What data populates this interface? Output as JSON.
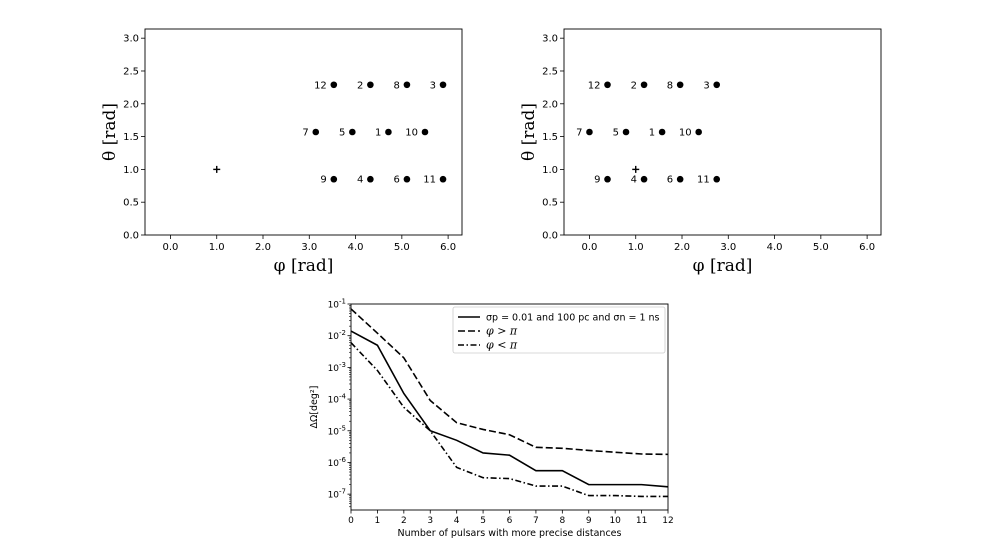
{
  "chart_data": [
    {
      "type": "scatter",
      "panel": "top-left",
      "xlabel": "φ [rad]",
      "ylabel": "θ [rad]",
      "xlim": [
        -0.55,
        6.3
      ],
      "ylim": [
        0,
        3.14
      ],
      "xticks": [
        "0.0",
        "1.0",
        "2.0",
        "3.0",
        "4.0",
        "5.0",
        "6.0"
      ],
      "yticks": [
        "0.0",
        "0.5",
        "1.0",
        "1.5",
        "2.0",
        "2.5",
        "3.0"
      ],
      "points": [
        {
          "label": "12",
          "x": 3.53,
          "y": 2.29
        },
        {
          "label": "2",
          "x": 4.32,
          "y": 2.29
        },
        {
          "label": "8",
          "x": 5.11,
          "y": 2.29
        },
        {
          "label": "3",
          "x": 5.89,
          "y": 2.29
        },
        {
          "label": "7",
          "x": 3.14,
          "y": 1.57
        },
        {
          "label": "5",
          "x": 3.93,
          "y": 1.57
        },
        {
          "label": "1",
          "x": 4.71,
          "y": 1.57
        },
        {
          "label": "10",
          "x": 5.5,
          "y": 1.57
        },
        {
          "label": "9",
          "x": 3.53,
          "y": 0.85
        },
        {
          "label": "4",
          "x": 4.32,
          "y": 0.85
        },
        {
          "label": "6",
          "x": 5.11,
          "y": 0.85
        },
        {
          "label": "11",
          "x": 5.89,
          "y": 0.85
        }
      ],
      "source": {
        "marker": "plus",
        "x": 1.0,
        "y": 1.0
      }
    },
    {
      "type": "scatter",
      "panel": "top-right",
      "xlabel": "φ [rad]",
      "ylabel": "θ [rad]",
      "xlim": [
        -0.55,
        6.3
      ],
      "ylim": [
        0,
        3.14
      ],
      "xticks": [
        "0.0",
        "1.0",
        "2.0",
        "3.0",
        "4.0",
        "5.0",
        "6.0"
      ],
      "yticks": [
        "0.0",
        "0.5",
        "1.0",
        "1.5",
        "2.0",
        "2.5",
        "3.0"
      ],
      "points": [
        {
          "label": "12",
          "x": 0.39,
          "y": 2.29
        },
        {
          "label": "2",
          "x": 1.18,
          "y": 2.29
        },
        {
          "label": "8",
          "x": 1.96,
          "y": 2.29
        },
        {
          "label": "3",
          "x": 2.75,
          "y": 2.29
        },
        {
          "label": "7",
          "x": 0.0,
          "y": 1.57
        },
        {
          "label": "5",
          "x": 0.79,
          "y": 1.57
        },
        {
          "label": "1",
          "x": 1.57,
          "y": 1.57
        },
        {
          "label": "10",
          "x": 2.36,
          "y": 1.57
        },
        {
          "label": "9",
          "x": 0.39,
          "y": 0.85
        },
        {
          "label": "4",
          "x": 1.18,
          "y": 0.85
        },
        {
          "label": "6",
          "x": 1.96,
          "y": 0.85
        },
        {
          "label": "11",
          "x": 2.75,
          "y": 0.85
        }
      ],
      "source": {
        "marker": "plus",
        "x": 1.0,
        "y": 1.0
      }
    },
    {
      "type": "line",
      "panel": "bottom",
      "xlabel": "Number of pulsars with more precise distances",
      "ylabel": "ΔΩ[deg²]",
      "yscale": "log",
      "xlim": [
        0,
        12
      ],
      "ylim_log10": [
        -7.5,
        -1
      ],
      "xticks": [
        "0",
        "1",
        "2",
        "3",
        "4",
        "5",
        "6",
        "7",
        "8",
        "9",
        "10",
        "11",
        "12"
      ],
      "yticks": [
        {
          "base": "10",
          "exp": "-1"
        },
        {
          "base": "10",
          "exp": "-2"
        },
        {
          "base": "10",
          "exp": "-3"
        },
        {
          "base": "10",
          "exp": "-4"
        },
        {
          "base": "10",
          "exp": "-5"
        },
        {
          "base": "10",
          "exp": "-6"
        },
        {
          "base": "10",
          "exp": "-7"
        }
      ],
      "x": [
        0,
        1,
        2,
        3,
        4,
        5,
        6,
        7,
        8,
        9,
        10,
        11,
        12
      ],
      "legend_position": "top-right",
      "series": [
        {
          "name": "σp = 0.01 and 100 pc and σn = 1 ns",
          "style": "solid",
          "values": [
            0.014,
            0.005,
            0.00015,
            1e-05,
            5e-06,
            2e-06,
            1.7e-06,
            5.5e-07,
            5.5e-07,
            2e-07,
            2e-07,
            2e-07,
            1.7e-07
          ]
        },
        {
          "name": "φ > π",
          "style": "dashed",
          "values": [
            0.07,
            0.012,
            0.002,
            9e-05,
            1.8e-05,
            1.1e-05,
            7.5e-06,
            3e-06,
            2.8e-06,
            2.4e-06,
            2.1e-06,
            1.85e-06,
            1.8e-06
          ]
        },
        {
          "name": "φ < π",
          "style": "dashdot",
          "values": [
            0.006,
            0.0008,
            5.5e-05,
            1e-05,
            7e-07,
            3.3e-07,
            3.1e-07,
            1.8e-07,
            1.8e-07,
            9e-08,
            9e-08,
            8.5e-08,
            8.5e-08
          ]
        }
      ]
    }
  ]
}
